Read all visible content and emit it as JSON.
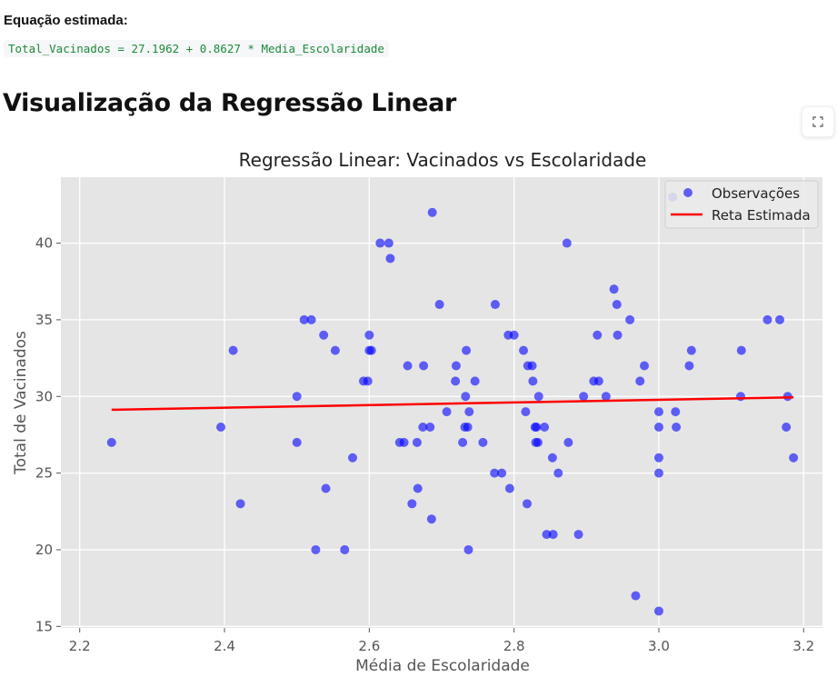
{
  "equation": {
    "label": "Equação estimada:",
    "formula": "Total_Vacinados = 27.1962 + 0.8627 * Media_Escolaridade"
  },
  "section": {
    "title": "Visualização da Regressão Linear"
  },
  "toolbar": {
    "fullscreen_icon": "fullscreen-icon"
  },
  "chart_data": {
    "type": "scatter",
    "title": "Regressão Linear: Vacinados vs Escolaridade",
    "xlabel": "Média de Escolaridade",
    "ylabel": "Total de Vacinados",
    "xlim": [
      2.2,
      3.2
    ],
    "ylim": [
      15,
      44
    ],
    "xticks": [
      2.2,
      2.4,
      2.6,
      2.8,
      3.0,
      3.2
    ],
    "xtick_labels": [
      "2.2",
      "2.4",
      "2.6",
      "2.8",
      "3.0",
      "3.2"
    ],
    "yticks": [
      15,
      20,
      25,
      30,
      35,
      40
    ],
    "ytick_labels": [
      "15",
      "20",
      "25",
      "30",
      "35",
      "40"
    ],
    "grid": true,
    "legend_position": "upper-right",
    "background": "#e5e5e5",
    "series": [
      {
        "name": "Observações",
        "kind": "scatter",
        "color": "#0000ff",
        "points": [
          [
            2.244,
            27
          ],
          [
            2.395,
            28
          ],
          [
            2.412,
            33
          ],
          [
            2.422,
            23
          ],
          [
            2.5,
            30
          ],
          [
            2.5,
            27
          ],
          [
            2.51,
            35
          ],
          [
            2.52,
            35
          ],
          [
            2.526,
            20
          ],
          [
            2.537,
            34
          ],
          [
            2.54,
            24
          ],
          [
            2.553,
            33
          ],
          [
            2.566,
            20
          ],
          [
            2.577,
            26
          ],
          [
            2.592,
            31
          ],
          [
            2.598,
            31
          ],
          [
            2.6,
            34
          ],
          [
            2.6,
            33
          ],
          [
            2.603,
            33
          ],
          [
            2.615,
            40
          ],
          [
            2.627,
            40
          ],
          [
            2.629,
            39
          ],
          [
            2.642,
            27
          ],
          [
            2.648,
            27
          ],
          [
            2.653,
            32
          ],
          [
            2.659,
            23
          ],
          [
            2.666,
            27
          ],
          [
            2.667,
            24
          ],
          [
            2.674,
            28
          ],
          [
            2.675,
            32
          ],
          [
            2.684,
            28
          ],
          [
            2.686,
            22
          ],
          [
            2.687,
            42
          ],
          [
            2.697,
            36
          ],
          [
            2.707,
            29
          ],
          [
            2.719,
            31
          ],
          [
            2.72,
            32
          ],
          [
            2.729,
            27
          ],
          [
            2.732,
            28
          ],
          [
            2.733,
            30
          ],
          [
            2.734,
            33
          ],
          [
            2.736,
            28
          ],
          [
            2.737,
            20
          ],
          [
            2.738,
            29
          ],
          [
            2.746,
            31
          ],
          [
            2.757,
            27
          ],
          [
            2.773,
            25
          ],
          [
            2.774,
            36
          ],
          [
            2.783,
            25
          ],
          [
            2.792,
            34
          ],
          [
            2.794,
            24
          ],
          [
            2.8,
            34
          ],
          [
            2.813,
            33
          ],
          [
            2.816,
            29
          ],
          [
            2.818,
            23
          ],
          [
            2.819,
            32
          ],
          [
            2.825,
            32
          ],
          [
            2.826,
            31
          ],
          [
            2.829,
            28
          ],
          [
            2.83,
            27
          ],
          [
            2.831,
            28
          ],
          [
            2.833,
            27
          ],
          [
            2.834,
            30
          ],
          [
            2.842,
            28
          ],
          [
            2.845,
            21
          ],
          [
            2.853,
            26
          ],
          [
            2.854,
            21
          ],
          [
            2.861,
            25
          ],
          [
            2.873,
            40
          ],
          [
            2.875,
            27
          ],
          [
            2.889,
            21
          ],
          [
            2.896,
            30
          ],
          [
            2.91,
            31
          ],
          [
            2.915,
            34
          ],
          [
            2.917,
            31
          ],
          [
            2.927,
            30
          ],
          [
            2.938,
            37
          ],
          [
            2.942,
            36
          ],
          [
            2.943,
            34
          ],
          [
            2.96,
            35
          ],
          [
            2.968,
            17
          ],
          [
            2.974,
            31
          ],
          [
            2.98,
            32
          ],
          [
            3.0,
            29
          ],
          [
            3.0,
            28
          ],
          [
            3.0,
            26
          ],
          [
            3.0,
            25
          ],
          [
            3.0,
            16
          ],
          [
            3.019,
            43
          ],
          [
            3.023,
            29
          ],
          [
            3.024,
            28
          ],
          [
            3.042,
            32
          ],
          [
            3.045,
            33
          ],
          [
            3.113,
            30
          ],
          [
            3.114,
            33
          ],
          [
            3.15,
            35
          ],
          [
            3.167,
            35
          ],
          [
            3.176,
            28
          ],
          [
            3.178,
            30
          ],
          [
            3.186,
            26
          ]
        ]
      },
      {
        "name": "Reta Estimada",
        "kind": "line",
        "color": "#ff0000",
        "points": [
          [
            2.244,
            29.13
          ],
          [
            3.186,
            29.94
          ]
        ]
      }
    ]
  }
}
